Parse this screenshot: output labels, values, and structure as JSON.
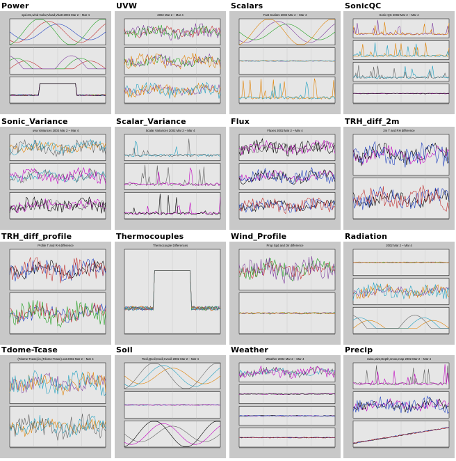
{
  "thumbnails": [
    {
      "title": "Power",
      "subtitle": "spd.2m,wind+solar,Vload,Vbatt 2002 Mar 2 – Mar 4",
      "panels": 3,
      "legend": "",
      "style": "power"
    },
    {
      "title": "UVW",
      "subtitle": "2002 Mar 2 – Mar 4",
      "panels": 3,
      "legend": "",
      "style": "noisy"
    },
    {
      "title": "Scalars",
      "subtitle": "Fast Scalars 2002 Mar 2 – Mar 4",
      "panels": 3,
      "legend": "",
      "style": "scalars"
    },
    {
      "title": "SonicQC",
      "subtitle": "Sonic QC 2002 Mar 2 – Mar 4",
      "panels": 4,
      "legend": "",
      "style": "spikes"
    },
    {
      "title": "Sonic_Variance",
      "subtitle": "uvw Variances 2002 Mar 2 – Mar 4",
      "panels": 3,
      "legend": "",
      "style": "noisy"
    },
    {
      "title": "Scalar_Variance",
      "subtitle": "Scalar Variances 2002 Mar 2 – Mar 4",
      "panels": 3,
      "legend": "",
      "style": "spiky"
    },
    {
      "title": "Flux",
      "subtitle": "Fluxes 2002 Mar 2 – Mar 4",
      "panels": 3,
      "legend": "",
      "style": "noisy"
    },
    {
      "title": "TRH_diff_2m",
      "subtitle": "2m T and RH difference",
      "panels": 2,
      "legend": "",
      "style": "diffs"
    },
    {
      "title": "TRH_diff_profile",
      "subtitle": "Profile T and RH difference",
      "panels": 2,
      "legend": "",
      "style": "profile"
    },
    {
      "title": "Thermocouples",
      "subtitle": "Thermocouple Differences",
      "panels": 1,
      "legend": "",
      "style": "thermo"
    },
    {
      "title": "Wind_Profile",
      "subtitle": "Prop Spd and Dir difference",
      "panels": 2,
      "legend": "",
      "style": "windprof"
    },
    {
      "title": "Radiation",
      "subtitle": "2002 Mar 2 – Mar 4",
      "panels": 3,
      "legend": "",
      "style": "radiation"
    },
    {
      "title": "Tdome-Tcase",
      "subtitle": "(Tdome-Tcase).in,(Tdome-Tcase).out 2002 Mar 2 – Mar 4",
      "panels": 2,
      "legend": "",
      "style": "tdome"
    },
    {
      "title": "Soil",
      "subtitle": "Tsoil,Qsoil,Csoil,Cvsoil 2002 Mar 2 – Mar 4",
      "panels": 3,
      "legend": "",
      "style": "soil"
    },
    {
      "title": "Weather",
      "subtitle": "Weather 2002 Mar 2 – Mar 4",
      "panels": 4,
      "legend": "",
      "style": "weather"
    },
    {
      "title": "Precip",
      "subtitle": "raina,rainr,Depth,snow,evap 2002 Mar 2 – Mar 4",
      "panels": 3,
      "legend": "",
      "style": "precip"
    }
  ],
  "colors": {
    "panel_bg": "#c8c8c8",
    "plot_bg": "#e6e6e6",
    "line": "#000000"
  }
}
